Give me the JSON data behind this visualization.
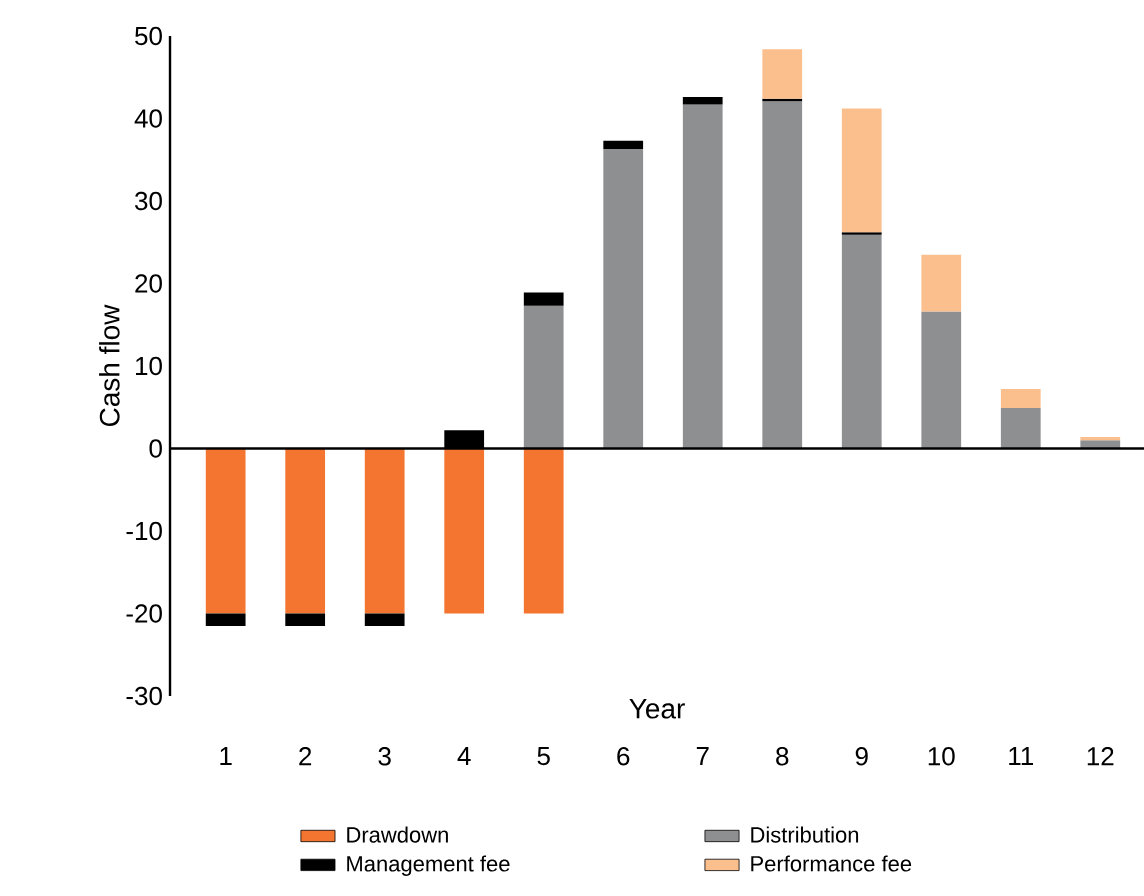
{
  "chart_data": {
    "type": "bar",
    "stacked": true,
    "xlabel": "Year",
    "ylabel": "Cash flow",
    "categories": [
      "1",
      "2",
      "3",
      "4",
      "5",
      "6",
      "7",
      "8",
      "9",
      "10",
      "11",
      "12"
    ],
    "series": [
      {
        "name": "Drawdown",
        "color": "#f47530",
        "values": [
          -20,
          -20,
          -20,
          -20,
          -20,
          null,
          null,
          null,
          null,
          null,
          null,
          null
        ]
      },
      {
        "name": "Distribution",
        "color": "#8e8f91",
        "values": [
          null,
          null,
          null,
          null,
          17.3,
          36.3,
          41.7,
          42.1,
          25.9,
          16.6,
          4.9,
          1.0
        ]
      },
      {
        "name": "Management fee",
        "color": "#000000",
        "values": [
          -1.5,
          -1.5,
          -1.5,
          2.2,
          1.6,
          1.0,
          0.9,
          0.3,
          0.3,
          null,
          null,
          null
        ]
      },
      {
        "name": "Performance fee",
        "color": "#fbbf8e",
        "values": [
          null,
          null,
          null,
          null,
          null,
          null,
          null,
          6.0,
          15.0,
          6.9,
          2.3,
          0.4
        ]
      }
    ],
    "ylim": [
      -30,
      50
    ],
    "yticks": [
      -30,
      -20,
      -10,
      0,
      10,
      20,
      30,
      40,
      50
    ],
    "legend": "bottom"
  }
}
